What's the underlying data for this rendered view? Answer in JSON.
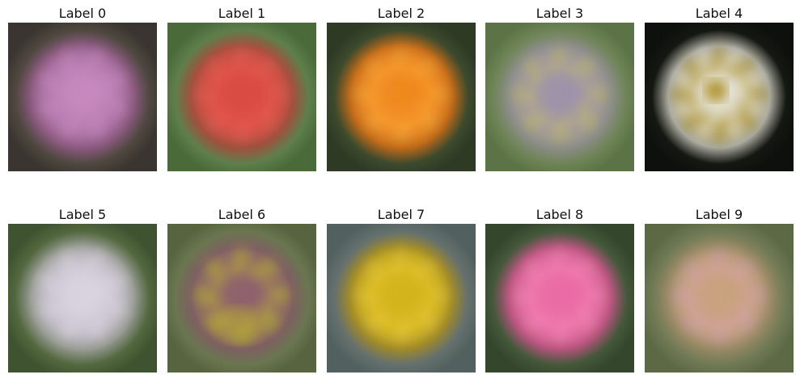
{
  "panels": [
    {
      "label": "Label 0",
      "description": "pink blurred flower on dark brown-green background",
      "colors": {
        "background": "#4f4840",
        "edge": "#3a3530",
        "mid": "#8c5a80",
        "center": "#c98ac0",
        "accent": "#b47aae"
      }
    },
    {
      "label": "Label 1",
      "description": "red blurred flower on green background",
      "colors": {
        "background": "#5e7f4b",
        "edge": "#4a6a3a",
        "mid": "#a0503e",
        "center": "#d94a42",
        "accent": "#e35a50"
      }
    },
    {
      "label": "Label 2",
      "description": "orange blurred flower on dark green background",
      "colors": {
        "background": "#3d4a2d",
        "edge": "#2e3a24",
        "mid": "#c06a1a",
        "center": "#f0861c",
        "accent": "#f5a035"
      }
    },
    {
      "label": "Label 3",
      "description": "faint purple-yellow blurred flower on green background",
      "colors": {
        "background": "#6e8456",
        "edge": "#5b7346",
        "mid": "#8e8e8a",
        "center": "#9a8fb0",
        "accent": "#b8b07a"
      }
    },
    {
      "label": "Label 4",
      "description": "white daisy-like flower with yellow center on black background",
      "colors": {
        "background": "#151812",
        "edge": "#0d100c",
        "mid": "#a8a89e",
        "center": "#e8e8e2",
        "accent": "#b39a3a"
      }
    },
    {
      "label": "Label 5",
      "description": "white-lavender blurred flower on green background",
      "colors": {
        "background": "#53683f",
        "edge": "#3f5330",
        "mid": "#9a9d96",
        "center": "#dad6e0",
        "accent": "#c9c2d0"
      }
    },
    {
      "label": "Label 6",
      "description": "purple and yellow pansy-like blurred flower on green background",
      "colors": {
        "background": "#6a7650",
        "edge": "#57643f",
        "mid": "#7e5f62",
        "center": "#8a5a74",
        "accent": "#b0a03a"
      }
    },
    {
      "label": "Label 7",
      "description": "yellow spiky blurred flower on blue-gray background",
      "colors": {
        "background": "#64706e",
        "edge": "#52615f",
        "mid": "#a08a2a",
        "center": "#d2b21a",
        "accent": "#e1c232"
      }
    },
    {
      "label": "Label 8",
      "description": "bright pink blurred flower on dark green background",
      "colors": {
        "background": "#44583a",
        "edge": "#34462c",
        "mid": "#b8557e",
        "center": "#ea6aa4",
        "accent": "#f07fb0"
      }
    },
    {
      "label": "Label 9",
      "description": "pale pink-yellow star-like blurred flower on olive-green background",
      "colors": {
        "background": "#6f7a55",
        "edge": "#5d6845",
        "mid": "#9a8a66",
        "center": "#c7a27a",
        "accent": "#d1a2a0"
      }
    }
  ]
}
